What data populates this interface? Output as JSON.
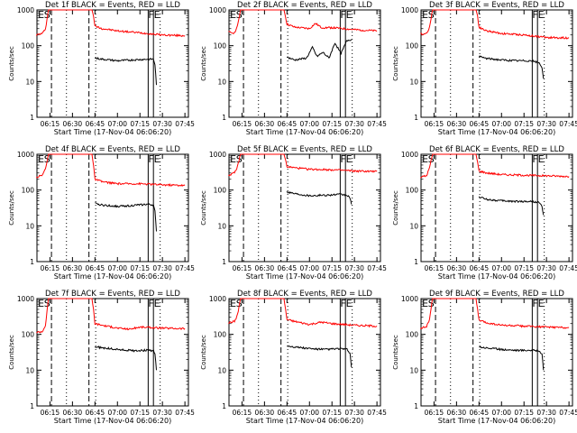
{
  "chart_data": [
    {
      "type": "line",
      "title": "Det 1f BLACK = Events, RED = LLD",
      "xlabel": "Start Time (17-Nov-04 06:06:20)",
      "ylabel": "Counts/sec",
      "yscale": "log",
      "ylim": [
        1,
        1000
      ],
      "y_ticks": [
        "1",
        "10",
        "100",
        "1000"
      ],
      "x_ticks": [
        "06:15",
        "06:30",
        "06:45",
        "07:00",
        "07:15",
        "07:30",
        "07:45"
      ],
      "markers": [
        "E",
        "S",
        "FE"
      ],
      "series": [
        {
          "color": "#ff0000",
          "x": [
            "06:06",
            "06:10",
            "06:12",
            "06:14",
            "06:15",
            "06:35",
            "06:42",
            "06:43",
            "06:44",
            "06:45",
            "06:50",
            "07:00",
            "07:15",
            "07:30",
            "07:45"
          ],
          "y": [
            200,
            220,
            300,
            1000,
            1000,
            1000,
            1000,
            1000,
            700,
            350,
            300,
            260,
            230,
            200,
            190
          ]
        },
        {
          "color": "#000000",
          "x": [
            "06:45",
            "06:50",
            "07:00",
            "07:10",
            "07:20",
            "07:24",
            "07:25",
            "07:26"
          ],
          "y": [
            45,
            42,
            38,
            40,
            42,
            42,
            30,
            8
          ]
        }
      ]
    },
    {
      "type": "line",
      "title": "Det 2f BLACK = Events, RED = LLD",
      "xlabel": "Start Time (17-Nov-04 06:06:20)",
      "ylabel": "Counts/sec",
      "yscale": "log",
      "ylim": [
        1,
        1000
      ],
      "y_ticks": [
        "1",
        "10",
        "100",
        "1000"
      ],
      "x_ticks": [
        "06:15",
        "06:30",
        "06:45",
        "07:00",
        "07:15",
        "07:30",
        "07:45"
      ],
      "markers": [
        "E",
        "S",
        "FE"
      ],
      "series": [
        {
          "color": "#ff0000",
          "x": [
            "06:06",
            "06:10",
            "06:12",
            "06:14",
            "06:15",
            "06:35",
            "06:42",
            "06:43",
            "06:44",
            "06:45",
            "06:50",
            "07:00",
            "07:04",
            "07:08",
            "07:15",
            "07:30",
            "07:45"
          ],
          "y": [
            240,
            230,
            350,
            1000,
            1000,
            1000,
            1000,
            1000,
            650,
            400,
            330,
            300,
            420,
            320,
            320,
            280,
            260
          ]
        },
        {
          "color": "#000000",
          "x": [
            "06:45",
            "06:50",
            "06:58",
            "07:02",
            "07:05",
            "07:09",
            "07:13",
            "07:17",
            "07:21",
            "07:25",
            "07:28"
          ],
          "y": [
            48,
            40,
            45,
            90,
            50,
            65,
            45,
            120,
            60,
            140,
            150
          ]
        }
      ]
    },
    {
      "type": "line",
      "title": "Det 3f BLACK = Events, RED = LLD",
      "xlabel": "Start Time (17-Nov-04 06:06:20)",
      "ylabel": "Counts/sec",
      "yscale": "log",
      "ylim": [
        1,
        1000
      ],
      "y_ticks": [
        "1",
        "10",
        "100",
        "1000"
      ],
      "x_ticks": [
        "06:15",
        "06:30",
        "06:45",
        "07:00",
        "07:15",
        "07:30",
        "07:45"
      ],
      "markers": [
        "E",
        "S",
        "FE"
      ],
      "series": [
        {
          "color": "#ff0000",
          "x": [
            "06:06",
            "06:10",
            "06:12",
            "06:14",
            "06:15",
            "06:35",
            "06:42",
            "06:43",
            "06:44",
            "06:45",
            "06:50",
            "07:00",
            "07:15",
            "07:30",
            "07:45"
          ],
          "y": [
            210,
            220,
            330,
            1000,
            1000,
            1000,
            1000,
            1000,
            700,
            330,
            260,
            220,
            200,
            170,
            165
          ]
        },
        {
          "color": "#000000",
          "x": [
            "06:45",
            "06:50",
            "07:00",
            "07:10",
            "07:20",
            "07:25",
            "07:27",
            "07:28"
          ],
          "y": [
            50,
            44,
            40,
            38,
            38,
            33,
            25,
            12
          ]
        }
      ]
    },
    {
      "type": "line",
      "title": "Det 4f BLACK = Events, RED = LLD",
      "xlabel": "Start Time (17-Nov-04 06:06:20)",
      "ylabel": "Counts/sec",
      "yscale": "log",
      "ylim": [
        1,
        1000
      ],
      "y_ticks": [
        "1",
        "10",
        "100",
        "1000"
      ],
      "x_ticks": [
        "06:15",
        "06:30",
        "06:45",
        "07:00",
        "07:15",
        "07:30",
        "07:45"
      ],
      "markers": [
        "E",
        "S",
        "FE"
      ],
      "series": [
        {
          "color": "#ff0000",
          "x": [
            "06:06",
            "06:10",
            "06:12",
            "06:14",
            "06:15",
            "06:35",
            "06:42",
            "06:43",
            "06:44",
            "06:45",
            "06:50",
            "07:00",
            "07:15",
            "07:30",
            "07:45"
          ],
          "y": [
            230,
            260,
            400,
            1000,
            1000,
            1000,
            1000,
            1000,
            500,
            200,
            170,
            150,
            150,
            140,
            135
          ]
        },
        {
          "color": "#000000",
          "x": [
            "06:45",
            "06:50",
            "07:00",
            "07:10",
            "07:20",
            "07:24",
            "07:25",
            "07:26"
          ],
          "y": [
            42,
            38,
            35,
            37,
            40,
            38,
            25,
            7
          ]
        }
      ]
    },
    {
      "type": "line",
      "title": "Det 5f BLACK = Events, RED = LLD",
      "xlabel": "Start Time (17-Nov-04 06:06:20)",
      "ylabel": "Counts/sec",
      "yscale": "log",
      "ylim": [
        1,
        1000
      ],
      "y_ticks": [
        "1",
        "10",
        "100",
        "1000"
      ],
      "x_ticks": [
        "06:15",
        "06:30",
        "06:45",
        "07:00",
        "07:15",
        "07:30",
        "07:45"
      ],
      "markers": [
        "E",
        "S",
        "FE"
      ],
      "series": [
        {
          "color": "#ff0000",
          "x": [
            "06:06",
            "06:10",
            "06:12",
            "06:14",
            "06:15",
            "06:35",
            "06:42",
            "06:43",
            "06:44",
            "06:45",
            "06:50",
            "07:00",
            "07:15",
            "07:30",
            "07:45"
          ],
          "y": [
            260,
            300,
            450,
            1000,
            1000,
            1000,
            1000,
            1000,
            700,
            450,
            420,
            380,
            370,
            340,
            330
          ]
        },
        {
          "color": "#000000",
          "x": [
            "06:45",
            "06:50",
            "07:00",
            "07:10",
            "07:20",
            "07:25",
            "07:27",
            "07:28"
          ],
          "y": [
            90,
            80,
            70,
            72,
            75,
            72,
            60,
            40
          ]
        }
      ]
    },
    {
      "type": "line",
      "title": "Det 6f BLACK = Events, RED = LLD",
      "xlabel": "Start Time (17-Nov-04 06:06:20)",
      "ylabel": "Counts/sec",
      "yscale": "log",
      "ylim": [
        1,
        1000
      ],
      "y_ticks": [
        "1",
        "10",
        "100",
        "1000"
      ],
      "x_ticks": [
        "06:15",
        "06:30",
        "06:45",
        "07:00",
        "07:15",
        "07:30",
        "07:45"
      ],
      "markers": [
        "E",
        "S",
        "FE"
      ],
      "series": [
        {
          "color": "#ff0000",
          "x": [
            "06:06",
            "06:10",
            "06:12",
            "06:14",
            "06:15",
            "06:35",
            "06:42",
            "06:43",
            "06:44",
            "06:45",
            "06:50",
            "07:00",
            "07:15",
            "07:30",
            "07:45"
          ],
          "y": [
            230,
            250,
            420,
            1000,
            1000,
            1000,
            1000,
            1000,
            600,
            340,
            300,
            270,
            260,
            250,
            240
          ]
        },
        {
          "color": "#000000",
          "x": [
            "06:45",
            "06:50",
            "07:00",
            "07:10",
            "07:20",
            "07:25",
            "07:27",
            "07:28"
          ],
          "y": [
            65,
            55,
            50,
            48,
            48,
            45,
            35,
            20
          ]
        }
      ]
    },
    {
      "type": "line",
      "title": "Det 7f BLACK = Events, RED = LLD",
      "xlabel": "Start Time (17-Nov-04 06:06:20)",
      "ylabel": "Counts/sec",
      "yscale": "log",
      "ylim": [
        1,
        1000
      ],
      "y_ticks": [
        "1",
        "10",
        "100",
        "1000"
      ],
      "x_ticks": [
        "06:15",
        "06:30",
        "06:45",
        "07:00",
        "07:15",
        "07:30",
        "07:45"
      ],
      "markers": [
        "E",
        "S",
        "FE"
      ],
      "series": [
        {
          "color": "#ff0000",
          "x": [
            "06:06",
            "06:10",
            "06:12",
            "06:14",
            "06:15",
            "06:35",
            "06:42",
            "06:43",
            "06:44",
            "06:45",
            "06:50",
            "07:00",
            "07:08",
            "07:15",
            "07:30",
            "07:45"
          ],
          "y": [
            115,
            120,
            180,
            1000,
            1000,
            1000,
            1000,
            1000,
            500,
            200,
            180,
            150,
            140,
            160,
            150,
            145
          ]
        },
        {
          "color": "#000000",
          "x": [
            "06:45",
            "06:50",
            "07:00",
            "07:10",
            "07:20",
            "07:24",
            "07:25",
            "07:26"
          ],
          "y": [
            45,
            42,
            38,
            35,
            36,
            35,
            28,
            10
          ]
        }
      ]
    },
    {
      "type": "line",
      "title": "Det 8f BLACK = Events, RED = LLD",
      "xlabel": "Start Time (17-Nov-04 06:06:20)",
      "ylabel": "Counts/sec",
      "yscale": "log",
      "ylim": [
        1,
        1000
      ],
      "y_ticks": [
        "1",
        "10",
        "100",
        "1000"
      ],
      "x_ticks": [
        "06:15",
        "06:30",
        "06:45",
        "07:00",
        "07:15",
        "07:30",
        "07:45"
      ],
      "markers": [
        "E",
        "S",
        "FE"
      ],
      "series": [
        {
          "color": "#ff0000",
          "x": [
            "06:06",
            "06:10",
            "06:12",
            "06:14",
            "06:15",
            "06:35",
            "06:42",
            "06:43",
            "06:44",
            "06:45",
            "06:50",
            "07:00",
            "07:08",
            "07:15",
            "07:30",
            "07:45"
          ],
          "y": [
            210,
            230,
            350,
            1000,
            1000,
            1000,
            1000,
            1000,
            500,
            260,
            230,
            190,
            220,
            200,
            180,
            170
          ]
        },
        {
          "color": "#000000",
          "x": [
            "06:45",
            "06:50",
            "07:00",
            "07:10",
            "07:20",
            "07:25",
            "07:27",
            "07:28"
          ],
          "y": [
            48,
            45,
            40,
            38,
            40,
            38,
            30,
            12
          ]
        }
      ]
    },
    {
      "type": "line",
      "title": "Det 9f BLACK = Events, RED = LLD",
      "xlabel": "Start Time (17-Nov-04 06:06:20)",
      "ylabel": "Counts/sec",
      "yscale": "log",
      "ylim": [
        1,
        1000
      ],
      "y_ticks": [
        "1",
        "10",
        "100",
        "1000"
      ],
      "x_ticks": [
        "06:15",
        "06:30",
        "06:45",
        "07:00",
        "07:15",
        "07:30",
        "07:45"
      ],
      "markers": [
        "E",
        "S",
        "FE"
      ],
      "series": [
        {
          "color": "#ff0000",
          "x": [
            "06:06",
            "06:10",
            "06:12",
            "06:14",
            "06:15",
            "06:35",
            "06:42",
            "06:43",
            "06:44",
            "06:45",
            "06:50",
            "07:00",
            "07:15",
            "07:30",
            "07:45"
          ],
          "y": [
            150,
            165,
            260,
            1000,
            1000,
            1000,
            1000,
            1000,
            500,
            250,
            210,
            180,
            170,
            160,
            155
          ]
        },
        {
          "color": "#000000",
          "x": [
            "06:45",
            "06:50",
            "07:00",
            "07:10",
            "07:20",
            "07:25",
            "07:27",
            "07:28"
          ],
          "y": [
            45,
            42,
            38,
            36,
            36,
            35,
            28,
            10
          ]
        }
      ]
    }
  ]
}
